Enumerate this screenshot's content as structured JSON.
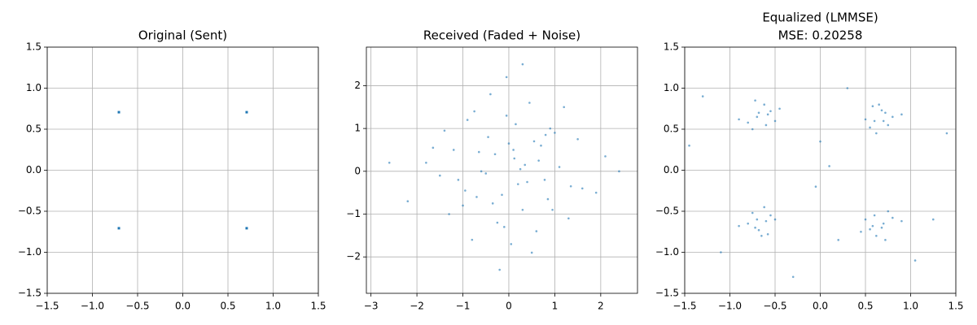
{
  "chart_data": [
    {
      "type": "scatter",
      "title": "Original (Sent)",
      "color": "#1f77b4",
      "marker": "square",
      "grid": true,
      "x": [
        -0.707,
        0.707,
        -0.707,
        0.707
      ],
      "y": [
        0.707,
        0.707,
        -0.707,
        -0.707
      ],
      "xlim": [
        -1.5,
        1.5
      ],
      "ylim": [
        -1.5,
        1.5
      ],
      "xticks": [
        {
          "value": -1.5,
          "label": "−1.5"
        },
        {
          "value": -1,
          "label": "−1.0"
        },
        {
          "value": -0.5,
          "label": "−0.5"
        },
        {
          "value": 0,
          "label": "0.0"
        },
        0.5,
        {
          "value": 1,
          "label": "1.0"
        },
        1.5
      ],
      "yticks": [
        {
          "value": -1.5,
          "label": "−1.5"
        },
        {
          "value": -1,
          "label": "−1.0"
        },
        {
          "value": -0.5,
          "label": "−0.5"
        },
        {
          "value": 0,
          "label": "0.0"
        },
        0.5,
        {
          "value": 1,
          "label": "1.0"
        },
        1.5
      ]
    },
    {
      "type": "scatter",
      "title": "Received (Faded + Noise)",
      "color": "#1f77b4",
      "marker": "dot",
      "grid": true,
      "x": [
        0.12,
        -0.45,
        0.78,
        -1.2,
        0.3,
        -0.05,
        1.1,
        -0.7,
        0.55,
        -0.25,
        1.6,
        -1.8,
        0.9,
        -0.6,
        0.2,
        -1.0,
        0.45,
        -0.3,
        1.3,
        -0.9,
        0.05,
        0.7,
        -1.5,
        0.35,
        -0.15,
        2.1,
        -2.2,
        0.6,
        -0.4,
        1.0,
        -1.1,
        0.25,
        0.85,
        -0.8,
        1.5,
        -0.05,
        -1.4,
        0.4,
        -0.65,
        1.9,
        -0.2,
        0.15,
        -2.6,
        0.95,
        -0.5,
        1.2,
        -1.3,
        0.65,
        0.0,
        -0.35,
        2.4,
        -0.75,
        0.5,
        -1.65,
        1.35,
        0.3,
        -0.95,
        0.8,
        -0.1,
        0.1
      ],
      "y": [
        0.3,
        0.8,
        -0.2,
        0.5,
        -0.9,
        1.3,
        0.1,
        -0.6,
        0.7,
        -1.2,
        -0.4,
        0.2,
        1.0,
        0.0,
        -0.3,
        -0.8,
        1.6,
        0.4,
        -1.1,
        1.2,
        -1.7,
        0.6,
        -0.1,
        0.15,
        -0.55,
        0.35,
        -0.7,
        -1.4,
        1.8,
        0.9,
        -0.2,
        0.05,
        -0.65,
        -1.6,
        0.75,
        2.2,
        0.95,
        -0.25,
        0.45,
        -0.5,
        -2.3,
        1.1,
        0.2,
        -0.9,
        -0.05,
        1.5,
        -1.0,
        0.25,
        0.65,
        -0.75,
        0.0,
        1.4,
        -1.9,
        0.55,
        -0.35,
        2.5,
        -0.45,
        0.85,
        -1.3,
        0.5
      ],
      "xlim": [
        -3.1,
        2.8
      ],
      "ylim": [
        -2.85,
        2.9
      ],
      "xticks": [
        {
          "value": -3,
          "label": "−3"
        },
        {
          "value": -2,
          "label": "−2"
        },
        {
          "value": -1,
          "label": "−1"
        },
        0,
        1,
        2
      ],
      "yticks": [
        {
          "value": -2,
          "label": "−2"
        },
        {
          "value": -1,
          "label": "−1"
        },
        0,
        1,
        2
      ]
    },
    {
      "type": "scatter",
      "title": "Equalized (LMMSE)",
      "subtitle": "MSE: 0.20258",
      "color": "#1f77b4",
      "marker": "dot",
      "grid": true,
      "x": [
        -0.7,
        -0.55,
        -0.8,
        -0.62,
        -0.5,
        -0.75,
        -0.68,
        -0.9,
        -0.45,
        -0.6,
        -0.72,
        -0.58,
        0.6,
        0.72,
        0.55,
        0.8,
        0.65,
        0.5,
        0.75,
        0.68,
        0.9,
        0.62,
        0.58,
        0.7,
        -0.6,
        -0.72,
        -0.55,
        -0.8,
        -0.65,
        -0.5,
        -0.75,
        -0.68,
        -0.9,
        -0.62,
        -0.58,
        -0.7,
        0.7,
        0.55,
        0.8,
        0.62,
        0.5,
        0.75,
        0.68,
        0.9,
        0.45,
        0.6,
        0.72,
        0.58,
        -1.3,
        1.25,
        0.1,
        -0.05,
        -1.1,
        1.4,
        0.3,
        -0.3,
        -1.45,
        1.05,
        0.0,
        0.2
      ],
      "y": [
        0.65,
        0.72,
        0.58,
        0.8,
        0.6,
        0.5,
        0.7,
        0.62,
        0.75,
        0.55,
        0.85,
        0.68,
        0.6,
        0.7,
        0.52,
        0.65,
        0.8,
        0.62,
        0.55,
        0.73,
        0.68,
        0.45,
        0.78,
        0.6,
        -0.62,
        -0.7,
        -0.55,
        -0.65,
        -0.8,
        -0.6,
        -0.52,
        -0.73,
        -0.68,
        -0.45,
        -0.78,
        -0.6,
        -0.65,
        -0.72,
        -0.58,
        -0.8,
        -0.6,
        -0.5,
        -0.7,
        -0.62,
        -0.75,
        -0.55,
        -0.85,
        -0.68,
        0.9,
        -0.6,
        0.05,
        -0.2,
        -1.0,
        0.45,
        1.0,
        -1.3,
        0.3,
        -1.1,
        0.35,
        -0.85
      ],
      "xlim": [
        -1.5,
        1.5
      ],
      "ylim": [
        -1.5,
        1.5
      ],
      "xticks": [
        {
          "value": -1.5,
          "label": "−1.5"
        },
        {
          "value": -1,
          "label": "−1.0"
        },
        {
          "value": -0.5,
          "label": "−0.5"
        },
        {
          "value": 0,
          "label": "0.0"
        },
        0.5,
        {
          "value": 1,
          "label": "1.0"
        },
        1.5
      ],
      "yticks": [
        {
          "value": -1.5,
          "label": "−1.5"
        },
        {
          "value": -1,
          "label": "−1.0"
        },
        {
          "value": -0.5,
          "label": "−0.5"
        },
        {
          "value": 0,
          "label": "0.0"
        },
        0.5,
        {
          "value": 1,
          "label": "1.0"
        },
        1.5
      ]
    }
  ]
}
